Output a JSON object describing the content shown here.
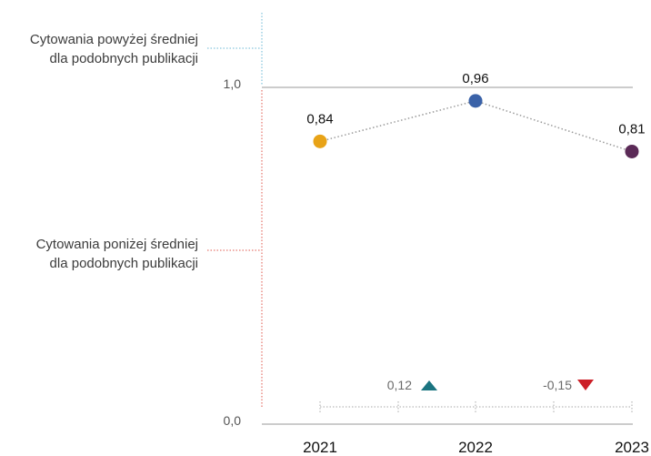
{
  "chart_data": {
    "type": "line",
    "x": [
      "2021",
      "2022",
      "2023"
    ],
    "values": [
      0.84,
      0.96,
      0.81
    ],
    "value_labels": [
      "0,84",
      "0,96",
      "0,81"
    ],
    "point_colors": [
      "#E8A317",
      "#3A62A8",
      "#5B2A57"
    ],
    "ylim": [
      0.0,
      1.0
    ],
    "y_tick_labels": [
      "0,0",
      "1,0"
    ],
    "reference_line": 1.0,
    "region_labels": {
      "above": [
        "Cytowania powyżej średniej",
        "dla podobnych  publikacji"
      ],
      "below": [
        "Cytowania poniżej średniej",
        "dla podobnych  publikacji"
      ]
    },
    "changes": [
      {
        "label": "0,12",
        "direction": "up",
        "color": "#1A7480"
      },
      {
        "label": "-0,15",
        "direction": "down",
        "color": "#CC1F27"
      }
    ],
    "line_style": "dotted",
    "grid": false,
    "colors": {
      "above_region": "#6BB8D6",
      "below_region": "#E0584E",
      "connector": "#9a9a9a",
      "axis": "#999999"
    }
  }
}
